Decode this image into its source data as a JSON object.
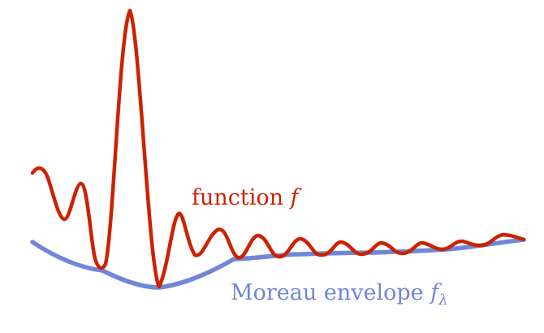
{
  "colors": {
    "function": "#cc2200",
    "envelope": "#6f86d9",
    "background": "#ffffff"
  },
  "labels": {
    "function_text": "function ",
    "function_symbol": "f",
    "envelope_text": "Moreau envelope ",
    "envelope_symbol": "f",
    "envelope_subscript": "λ"
  }
}
